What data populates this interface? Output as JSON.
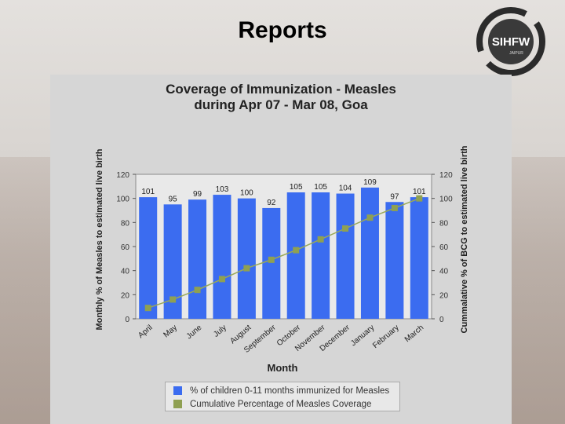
{
  "slide": {
    "title": "Reports"
  },
  "logo": {
    "text": "SIHFW",
    "subtext": "JAIPUR"
  },
  "colors": {
    "bar": "#3b6cf0",
    "line": "#9aa957",
    "marker": "#8fa052"
  },
  "chart_data": {
    "type": "bar",
    "title": [
      "Coverage of Immunization - Measles",
      "during Apr 07 - Mar 08, Goa"
    ],
    "categories": [
      "April",
      "May",
      "June",
      "July",
      "August",
      "September",
      "October",
      "November",
      "December",
      "January",
      "February",
      "March"
    ],
    "series": [
      {
        "name": "% of children 0-11 months immunized for Measles",
        "type": "bar",
        "axis": "left",
        "values": [
          101,
          95,
          99,
          103,
          100,
          92,
          105,
          105,
          104,
          109,
          97,
          101
        ]
      },
      {
        "name": "Cumulative Percentage of Measles Coverage",
        "type": "line",
        "axis": "right",
        "values": [
          9,
          16,
          24,
          33,
          42,
          49,
          57,
          66,
          75,
          84,
          92,
          100
        ]
      }
    ],
    "data_labels": [
      "101",
      "95",
      "99",
      "103",
      "100",
      "92",
      "105",
      "105",
      "104",
      "109",
      "97",
      "101"
    ],
    "xlabel": "Month",
    "ylabel_left": "Monthly % of Measles to estimated live birth",
    "ylabel_right": "Cummalative % of BCG to estimated live birth",
    "ylim": [
      0,
      120
    ],
    "yticks": [
      0,
      20,
      40,
      60,
      80,
      100,
      120
    ],
    "ytick_labels": [
      "0",
      "20",
      "40",
      "60",
      "80",
      "100",
      "120"
    ],
    "legend_position": "bottom"
  }
}
